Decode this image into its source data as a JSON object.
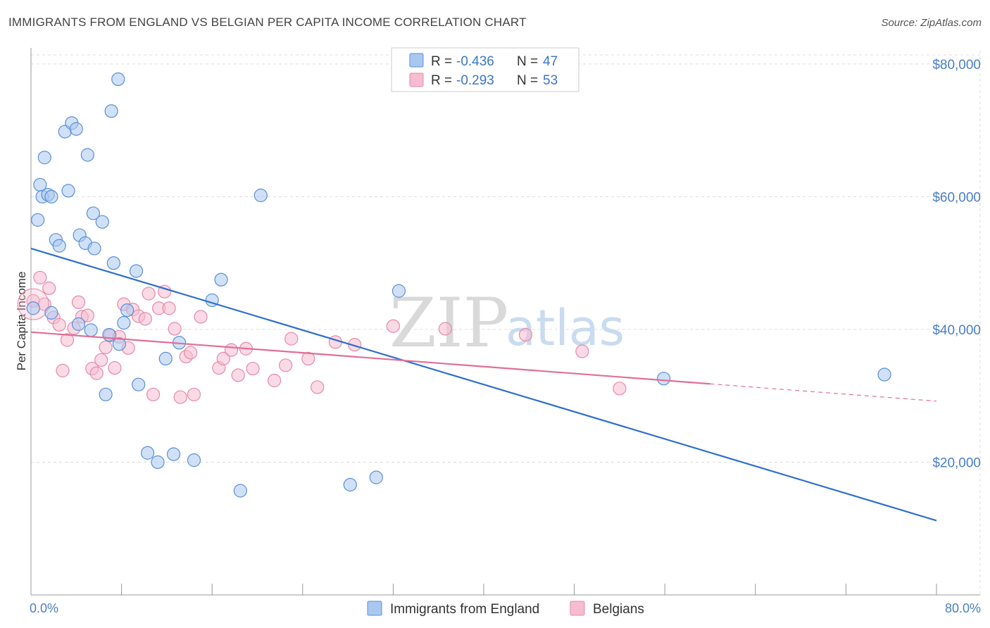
{
  "title": "IMMIGRANTS FROM ENGLAND VS BELGIAN PER CAPITA INCOME CORRELATION CHART",
  "source": "Source: ZipAtlas.com",
  "watermark": {
    "zip": "ZIP",
    "atlas": "atlas"
  },
  "colors": {
    "england_fill": "#a9c8f0",
    "england_stroke": "#5a8fd6",
    "england_line": "#2f6fcf",
    "belgian_fill": "#f6bcd0",
    "belgian_stroke": "#e58aa8",
    "belgian_line": "#e06f98",
    "grid": "#dddddd",
    "tick_label": "#4a7fc4"
  },
  "legend": {
    "rows": [
      {
        "r_label": "R = ",
        "r_value": "-0.436",
        "n_label": "N = ",
        "n_value": "47"
      },
      {
        "r_label": "R = ",
        "r_value": "-0.293",
        "n_label": "N = ",
        "n_value": "53"
      }
    ]
  },
  "chart_data": {
    "type": "scatter",
    "title": "IMMIGRANTS FROM ENGLAND VS BELGIAN PER CAPITA INCOME CORRELATION CHART",
    "xlabel": "",
    "ylabel": "Per Capita Income",
    "xlim": [
      0,
      80
    ],
    "ylim": [
      0,
      82000
    ],
    "x_tick_labels": [
      "0.0%",
      "80.0%"
    ],
    "y_ticks": [
      {
        "value": 20000,
        "label": "$20,000"
      },
      {
        "value": 40000,
        "label": "$40,000"
      },
      {
        "value": 60000,
        "label": "$60,000"
      },
      {
        "value": 80000,
        "label": "$80,000"
      }
    ],
    "grid": "horizontal-dashed",
    "legend_position": "top-center",
    "series": [
      {
        "name": "Immigrants from England",
        "points": [
          [
            0.6,
            56500
          ],
          [
            0.8,
            61800
          ],
          [
            1.0,
            60000
          ],
          [
            1.2,
            65900
          ],
          [
            1.5,
            60300
          ],
          [
            1.8,
            60000
          ],
          [
            2.2,
            53500
          ],
          [
            2.5,
            52600
          ],
          [
            3.0,
            69800
          ],
          [
            3.3,
            60900
          ],
          [
            3.6,
            71100
          ],
          [
            4.0,
            70200
          ],
          [
            4.3,
            54200
          ],
          [
            4.8,
            53000
          ],
          [
            5.0,
            66300
          ],
          [
            5.5,
            57500
          ],
          [
            5.6,
            52200
          ],
          [
            6.3,
            56200
          ],
          [
            7.1,
            72900
          ],
          [
            7.3,
            50000
          ],
          [
            7.7,
            77700
          ],
          [
            9.3,
            48800
          ],
          [
            1.8,
            42500
          ],
          [
            4.2,
            40800
          ],
          [
            5.3,
            39900
          ],
          [
            6.6,
            30200
          ],
          [
            6.9,
            39200
          ],
          [
            7.8,
            37800
          ],
          [
            8.2,
            41000
          ],
          [
            8.5,
            42900
          ],
          [
            9.5,
            31700
          ],
          [
            10.3,
            21400
          ],
          [
            11.2,
            20000
          ],
          [
            11.9,
            35600
          ],
          [
            12.6,
            21200
          ],
          [
            13.1,
            38000
          ],
          [
            14.4,
            20300
          ],
          [
            16.0,
            44400
          ],
          [
            16.8,
            47500
          ],
          [
            18.5,
            15700
          ],
          [
            20.3,
            60200
          ],
          [
            28.2,
            16600
          ],
          [
            30.5,
            17700
          ],
          [
            32.5,
            45800
          ],
          [
            55.9,
            32600
          ],
          [
            75.4,
            33200
          ],
          [
            0.2,
            43200
          ]
        ],
        "trend": {
          "x": [
            0,
            80
          ],
          "y": [
            52200,
            11200
          ]
        }
      },
      {
        "name": "Belgians",
        "points": [
          [
            0.2,
            44300
          ],
          [
            0.8,
            47800
          ],
          [
            1.2,
            43800
          ],
          [
            1.6,
            46200
          ],
          [
            2.0,
            41800
          ],
          [
            2.5,
            40700
          ],
          [
            2.8,
            33800
          ],
          [
            3.2,
            38400
          ],
          [
            3.8,
            40200
          ],
          [
            4.2,
            44100
          ],
          [
            4.5,
            41900
          ],
          [
            5.0,
            42100
          ],
          [
            5.4,
            34100
          ],
          [
            5.8,
            33400
          ],
          [
            6.2,
            35400
          ],
          [
            6.6,
            37300
          ],
          [
            7.0,
            39100
          ],
          [
            7.4,
            34200
          ],
          [
            7.8,
            38900
          ],
          [
            8.2,
            43800
          ],
          [
            8.6,
            37200
          ],
          [
            9.0,
            43000
          ],
          [
            9.5,
            42000
          ],
          [
            10.1,
            41600
          ],
          [
            10.4,
            45400
          ],
          [
            10.8,
            30200
          ],
          [
            11.3,
            43200
          ],
          [
            11.8,
            45700
          ],
          [
            12.2,
            43200
          ],
          [
            12.7,
            40100
          ],
          [
            13.2,
            29800
          ],
          [
            13.7,
            35900
          ],
          [
            14.1,
            36500
          ],
          [
            14.4,
            30200
          ],
          [
            15.0,
            41900
          ],
          [
            16.6,
            34200
          ],
          [
            17.0,
            35600
          ],
          [
            17.7,
            36900
          ],
          [
            18.3,
            33100
          ],
          [
            19.0,
            37100
          ],
          [
            19.6,
            34100
          ],
          [
            21.5,
            32300
          ],
          [
            22.5,
            34600
          ],
          [
            23.0,
            38600
          ],
          [
            24.5,
            35600
          ],
          [
            25.3,
            31300
          ],
          [
            26.9,
            38100
          ],
          [
            28.6,
            37700
          ],
          [
            32.0,
            40500
          ],
          [
            36.6,
            40100
          ],
          [
            43.7,
            39200
          ],
          [
            48.7,
            36700
          ],
          [
            52.0,
            31100
          ]
        ],
        "trend": {
          "x": [
            0,
            60
          ],
          "y": [
            39600,
            31800
          ]
        },
        "trend_extension": {
          "x": [
            60,
            80
          ],
          "y": [
            31800,
            29200
          ]
        }
      }
    ]
  }
}
